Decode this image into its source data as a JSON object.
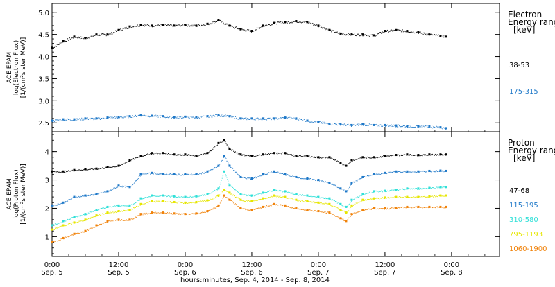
{
  "chart_data": [
    {
      "type": "scatter",
      "panel": "electron",
      "ylabel_lines": [
        "ACE EPAM",
        "log(Electron Flux)",
        "[1/(cm²s ster MeV)]"
      ],
      "ylim": [
        2.3,
        5.2
      ],
      "yticks": [
        2.5,
        3.0,
        3.5,
        4.0,
        4.5,
        5.0
      ],
      "ytick_labels": [
        "2.5",
        "3.0",
        "3.5",
        "4.0",
        "4.5",
        "5.0"
      ],
      "legend_title": [
        "Electron",
        "Energy range",
        "[keV]"
      ],
      "series": [
        {
          "name": "38-53",
          "color": "#000000",
          "x_hours": [
            0,
            2,
            4,
            6,
            8,
            10,
            12,
            14,
            16,
            18,
            20,
            22,
            24,
            26,
            28,
            30,
            32,
            34,
            36,
            38,
            40,
            42,
            44,
            46,
            48,
            50,
            52,
            54,
            56,
            58,
            60,
            62,
            64,
            66,
            68,
            70,
            71
          ],
          "y": [
            4.2,
            4.35,
            4.45,
            4.42,
            4.5,
            4.5,
            4.6,
            4.68,
            4.72,
            4.7,
            4.72,
            4.7,
            4.72,
            4.7,
            4.74,
            4.82,
            4.7,
            4.62,
            4.58,
            4.7,
            4.76,
            4.78,
            4.8,
            4.78,
            4.7,
            4.6,
            4.52,
            4.5,
            4.5,
            4.48,
            4.58,
            4.6,
            4.58,
            4.55,
            4.5,
            4.47,
            4.45
          ]
        },
        {
          "name": "175-315",
          "color": "#1e78c8",
          "x_hours": [
            0,
            2,
            4,
            6,
            8,
            10,
            12,
            14,
            16,
            18,
            20,
            22,
            24,
            26,
            28,
            30,
            32,
            34,
            36,
            38,
            40,
            42,
            44,
            46,
            48,
            50,
            52,
            54,
            56,
            58,
            60,
            62,
            64,
            66,
            68,
            70,
            71
          ],
          "y": [
            2.55,
            2.58,
            2.58,
            2.6,
            2.6,
            2.62,
            2.63,
            2.65,
            2.68,
            2.66,
            2.65,
            2.63,
            2.64,
            2.63,
            2.65,
            2.68,
            2.65,
            2.6,
            2.6,
            2.6,
            2.6,
            2.62,
            2.6,
            2.55,
            2.52,
            2.48,
            2.47,
            2.45,
            2.47,
            2.45,
            2.45,
            2.44,
            2.43,
            2.42,
            2.42,
            2.4,
            2.38
          ]
        }
      ]
    },
    {
      "type": "scatter",
      "panel": "proton",
      "ylabel_lines": [
        "ACE EPAM",
        "log(Proton Flux)",
        "[1/(cm²s ster MeV)]"
      ],
      "ylim": [
        0.3,
        4.7
      ],
      "yticks": [
        1,
        2,
        3,
        4
      ],
      "ytick_labels": [
        "1",
        "2",
        "3",
        "4"
      ],
      "legend_title": [
        "Proton",
        "Energy range",
        "[keV]"
      ],
      "series": [
        {
          "name": "47-68",
          "color": "#000000",
          "x_hours": [
            0,
            2,
            4,
            6,
            8,
            10,
            12,
            14,
            16,
            18,
            20,
            22,
            24,
            26,
            28,
            30,
            31,
            32,
            34,
            36,
            38,
            40,
            42,
            44,
            46,
            48,
            50,
            52,
            53,
            54,
            56,
            58,
            60,
            62,
            64,
            66,
            68,
            70,
            71
          ],
          "y": [
            3.3,
            3.3,
            3.35,
            3.38,
            3.4,
            3.45,
            3.5,
            3.7,
            3.85,
            3.95,
            3.95,
            3.9,
            3.9,
            3.85,
            3.95,
            4.3,
            4.4,
            4.1,
            3.9,
            3.85,
            3.9,
            3.95,
            3.95,
            3.85,
            3.85,
            3.8,
            3.8,
            3.6,
            3.5,
            3.7,
            3.8,
            3.8,
            3.85,
            3.88,
            3.9,
            3.88,
            3.9,
            3.9,
            3.9
          ]
        },
        {
          "name": "115-195",
          "color": "#1e78c8",
          "x_hours": [
            0,
            2,
            4,
            6,
            8,
            10,
            12,
            14,
            16,
            18,
            20,
            22,
            24,
            26,
            28,
            30,
            31,
            32,
            34,
            36,
            38,
            40,
            42,
            44,
            46,
            48,
            50,
            52,
            53,
            54,
            56,
            58,
            60,
            62,
            64,
            66,
            68,
            70,
            71
          ],
          "y": [
            2.1,
            2.2,
            2.4,
            2.45,
            2.5,
            2.6,
            2.8,
            2.75,
            3.2,
            3.25,
            3.22,
            3.2,
            3.2,
            3.2,
            3.3,
            3.5,
            3.85,
            3.5,
            3.1,
            3.05,
            3.2,
            3.3,
            3.2,
            3.1,
            3.05,
            3.0,
            2.9,
            2.7,
            2.6,
            2.9,
            3.1,
            3.2,
            3.25,
            3.3,
            3.3,
            3.3,
            3.32,
            3.33,
            3.32
          ]
        },
        {
          "name": "310-580",
          "color": "#30e0d8",
          "x_hours": [
            0,
            2,
            4,
            6,
            8,
            10,
            12,
            14,
            16,
            18,
            20,
            22,
            24,
            26,
            28,
            30,
            31,
            32,
            34,
            36,
            38,
            40,
            42,
            44,
            46,
            48,
            50,
            52,
            53,
            54,
            56,
            58,
            60,
            62,
            64,
            66,
            68,
            70,
            71
          ],
          "y": [
            1.4,
            1.55,
            1.7,
            1.8,
            1.95,
            2.05,
            2.1,
            2.1,
            2.35,
            2.45,
            2.45,
            2.42,
            2.4,
            2.42,
            2.5,
            2.7,
            3.3,
            2.8,
            2.5,
            2.45,
            2.55,
            2.65,
            2.6,
            2.5,
            2.45,
            2.4,
            2.35,
            2.15,
            2.05,
            2.3,
            2.5,
            2.6,
            2.62,
            2.65,
            2.7,
            2.7,
            2.72,
            2.75,
            2.75
          ]
        },
        {
          "name": "795-1193",
          "color": "#e6e600",
          "x_hours": [
            0,
            2,
            4,
            6,
            8,
            10,
            12,
            14,
            16,
            18,
            20,
            22,
            24,
            26,
            28,
            30,
            31,
            32,
            34,
            36,
            38,
            40,
            42,
            44,
            46,
            48,
            50,
            52,
            53,
            54,
            56,
            58,
            60,
            62,
            64,
            66,
            68,
            70,
            71
          ],
          "y": [
            1.25,
            1.4,
            1.5,
            1.6,
            1.75,
            1.85,
            1.9,
            1.95,
            2.15,
            2.25,
            2.25,
            2.22,
            2.2,
            2.22,
            2.28,
            2.45,
            2.65,
            2.55,
            2.3,
            2.25,
            2.35,
            2.45,
            2.4,
            2.3,
            2.25,
            2.2,
            2.15,
            1.95,
            1.85,
            2.1,
            2.3,
            2.35,
            2.38,
            2.4,
            2.4,
            2.4,
            2.42,
            2.45,
            2.45
          ]
        },
        {
          "name": "1060-1900",
          "color": "#f0820a",
          "x_hours": [
            0,
            2,
            4,
            6,
            8,
            10,
            12,
            14,
            16,
            18,
            20,
            22,
            24,
            26,
            28,
            30,
            31,
            32,
            34,
            36,
            38,
            40,
            42,
            44,
            46,
            48,
            50,
            52,
            53,
            54,
            56,
            58,
            60,
            62,
            64,
            66,
            68,
            70,
            71
          ],
          "y": [
            0.8,
            0.95,
            1.1,
            1.2,
            1.4,
            1.55,
            1.6,
            1.6,
            1.8,
            1.85,
            1.85,
            1.82,
            1.8,
            1.82,
            1.9,
            2.1,
            2.45,
            2.3,
            2.0,
            1.95,
            2.05,
            2.15,
            2.1,
            2.0,
            1.95,
            1.9,
            1.85,
            1.65,
            1.55,
            1.8,
            1.95,
            2.0,
            2.0,
            2.02,
            2.05,
            2.05,
            2.05,
            2.05,
            2.05
          ]
        }
      ]
    }
  ],
  "x_axis": {
    "ticks_hours": [
      0,
      12,
      24,
      36,
      48,
      60,
      72
    ],
    "tick_time_labels": [
      "0:00",
      "12:00",
      "0:00",
      "12:00",
      "0:00",
      "12:00",
      "0:00"
    ],
    "tick_date_labels": [
      "Sep. 5",
      "Sep. 5",
      "Sep. 6",
      "Sep. 6",
      "Sep. 7",
      "Sep. 7",
      "Sep. 8"
    ],
    "xlabel": "hours:minutes, Sep.  4, 2014 - Sep.  8, 2014"
  }
}
